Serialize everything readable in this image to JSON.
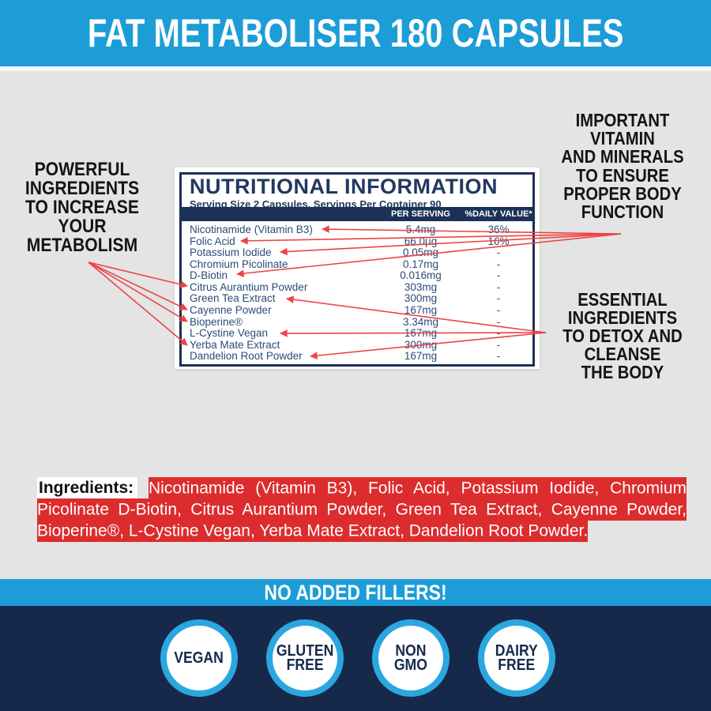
{
  "banner": {
    "title": "FAT METABOLISER 180 CAPSULES"
  },
  "callouts": {
    "left": "POWERFUL\nINGREDIENTS\nTO INCREASE\nYOUR\nMETABOLISM",
    "right_top": "IMPORTANT\nVITAMIN\nAND MINERALS\nTO ENSURE\nPROPER BODY\nFUNCTION",
    "right_bottom": "ESSENTIAL\nINGREDIENTS\nTO DETOX AND\nCLEANSE\nTHE BODY"
  },
  "nutrition": {
    "title": "NUTRITIONAL INFORMATION",
    "serving_line": "Serving Size 2 Capsules, Servings Per Container 90",
    "columns": {
      "per_serving": "PER SERVING",
      "daily_value": "%DAILY VALUE*"
    },
    "rows": [
      {
        "name": "Nicotinamide (Vitamin B3)",
        "per_serving": "5.4mg",
        "daily_value": "36%"
      },
      {
        "name": "Folic Acid",
        "per_serving": "66.0µg",
        "daily_value": "16%"
      },
      {
        "name": "Potassium Iodide",
        "per_serving": "0.05mg",
        "daily_value": "-"
      },
      {
        "name": "Chromium Picolinate",
        "per_serving": "0.17mg",
        "daily_value": "-"
      },
      {
        "name": "D-Biotin",
        "per_serving": "0.016mg",
        "daily_value": "-"
      },
      {
        "name": "Citrus Aurantium Powder",
        "per_serving": "303mg",
        "daily_value": "-"
      },
      {
        "name": "Green Tea Extract",
        "per_serving": "300mg",
        "daily_value": "-"
      },
      {
        "name": "Cayenne Powder",
        "per_serving": "167mg",
        "daily_value": "-"
      },
      {
        "name": "Bioperine®",
        "per_serving": "3.34mg",
        "daily_value": "-"
      },
      {
        "name": "L-Cystine Vegan",
        "per_serving": "167mg",
        "daily_value": "-"
      },
      {
        "name": "Yerba Mate Extract",
        "per_serving": "300mg",
        "daily_value": "-"
      },
      {
        "name": "Dandelion Root Powder",
        "per_serving": "167mg",
        "daily_value": "-"
      }
    ]
  },
  "ingredients": {
    "label": "Ingredients:",
    "text": "Nicotinamide (Vitamin B3), Folic Acid, Potassium Iodide, Chromium Picolinate D-Biotin, Citrus Aurantium Powder, Green Tea Extract, Cayenne Powder, Bioperine®, L-Cystine Vegan, Yerba Mate Extract, Dandelion Root Powder."
  },
  "no_fillers_banner": "NO ADDED FILLERS!",
  "badges": [
    {
      "label": "VEGAN"
    },
    {
      "label": "GLUTEN\nFREE"
    },
    {
      "label": "NON\nGMO"
    },
    {
      "label": "DAIRY\nFREE"
    }
  ],
  "colors": {
    "brand_blue": "#1D9DD8",
    "badge_ring_blue": "#2BA7E0",
    "dark_navy": "#17294B",
    "table_navy": "#1C3156",
    "table_text_navy": "#2C4B77",
    "highlight_red": "#DD2C2D",
    "arrow_red": "#EE4345",
    "body_grey": "#E4E4E4"
  }
}
